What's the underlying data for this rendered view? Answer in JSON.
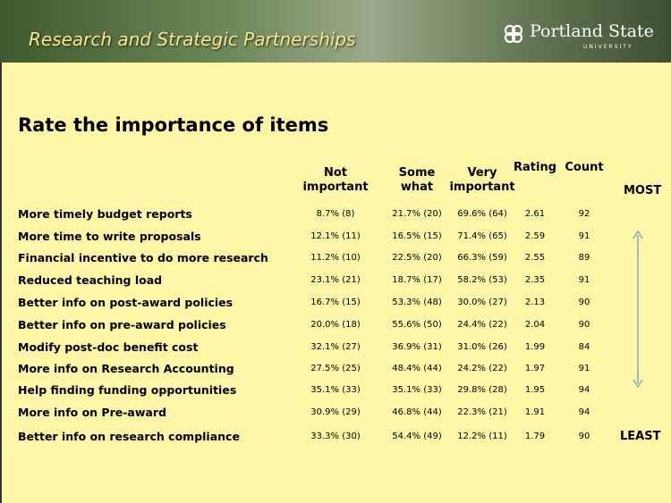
{
  "header": {
    "title": "Research and Strategic Partnerships",
    "logo": "Portland State",
    "logo_sub": "UNIVERSITY"
  },
  "heading": "Rate the importance of items",
  "table": {
    "columns": [
      "Not important",
      "Some what",
      "Very important",
      "Rating",
      "Count"
    ],
    "rows": [
      [
        "More timely budget reports",
        "8.7% (8)",
        "21.7% (20)",
        "69.6% (64)",
        "2.61",
        92
      ],
      [
        "More time to write proposals",
        "12.1% (11)",
        "16.5% (15)",
        "71.4% (65)",
        "2.59",
        91
      ],
      [
        "Financial incentive to do more research",
        "11.2% (10)",
        "22.5% (20)",
        "66.3% (59)",
        "2.55",
        89
      ],
      [
        "Reduced teaching load",
        "23.1% (21)",
        "18.7% (17)",
        "58.2% (53)",
        "2.35",
        91
      ],
      [
        "Better info on post-award policies",
        "16.7% (15)",
        "53.3% (48)",
        "30.0% (27)",
        "2.13",
        90
      ],
      [
        "Better info on pre-award policies",
        "20.0% (18)",
        "55.6% (50)",
        "24.4% (22)",
        "2.04",
        90
      ],
      [
        "Modify post-doc benefit cost",
        "32.1% (27)",
        "36.9% (31)",
        "31.0% (26)",
        "1.99",
        84
      ],
      [
        "More info on Research Accounting",
        "27.5% (25)",
        "48.4% (44)",
        "24.2% (22)",
        "1.97",
        91
      ],
      [
        "Help finding funding opportunities",
        "35.1% (33)",
        "35.1% (33)",
        "29.8% (28)",
        "1.95",
        94
      ],
      [
        "More info on Pre-award",
        "30.9% (29)",
        "46.8% (44)",
        "22.3% (21)",
        "1.91",
        94
      ],
      [
        "Better info on research compliance",
        "33.3% (30)",
        "54.4% (49)",
        "12.2% (11)",
        "1.79",
        90
      ]
    ],
    "top_label": "MOST",
    "bottom_label": "LEAST"
  }
}
